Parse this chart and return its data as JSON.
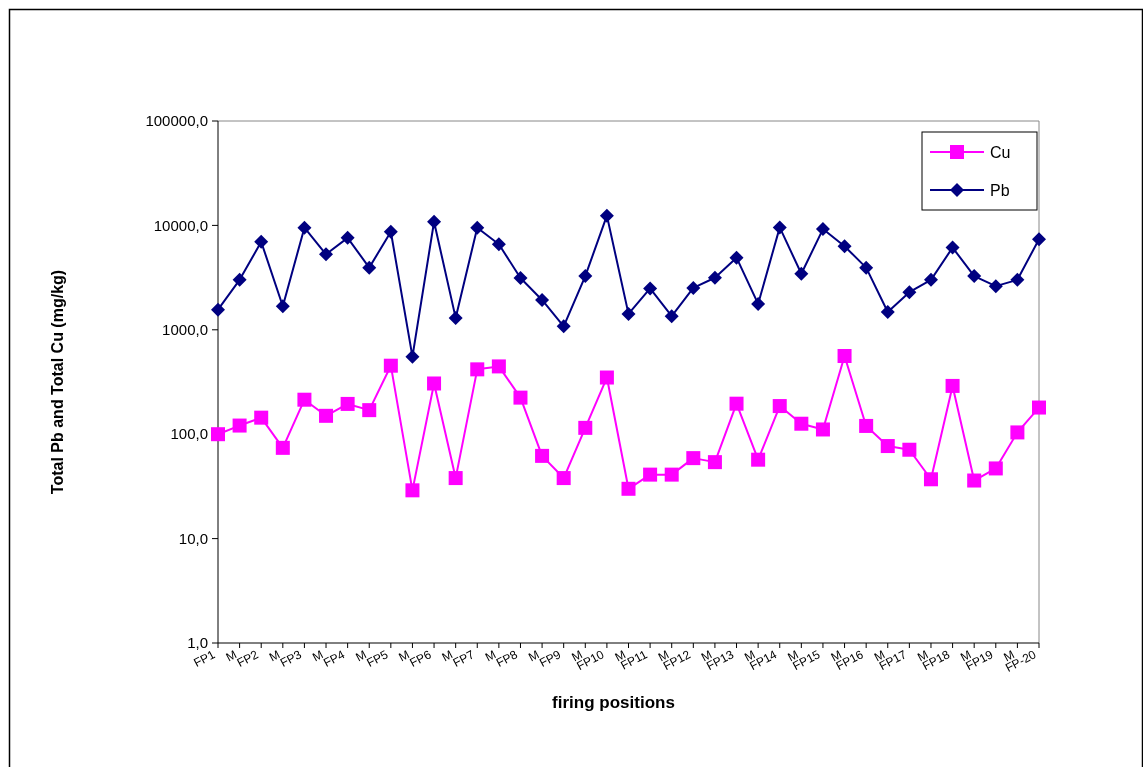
{
  "chart_data": {
    "type": "line",
    "xlabel": "firing positions",
    "ylabel": "Total Pb and Total Cu  (mg/kg)",
    "categories": [
      "FP1",
      "M",
      "FP2",
      "M",
      "FP3",
      "M",
      "FP4",
      "M",
      "FP5",
      "M",
      "FP6",
      "M",
      "FP7",
      "M",
      "FP8",
      "M",
      "FP9",
      "M",
      "FP10",
      "M",
      "FP11",
      "M",
      "FP12",
      "M",
      "FP13",
      "M",
      "FP14",
      "M",
      "FP15",
      "M",
      "FP16",
      "M",
      "FP17",
      "M",
      "FP18",
      "M",
      "FP19",
      "M",
      "FP-20"
    ],
    "series": [
      {
        "name": "Cu",
        "color": "#ff00ff",
        "marker": "square",
        "values": [
          100,
          121,
          144,
          74,
          214,
          150,
          195,
          170,
          453,
          29,
          306,
          38,
          418,
          446,
          224,
          62,
          38,
          115,
          349,
          30,
          41,
          41,
          59,
          54,
          196,
          57,
          186,
          126,
          111,
          561,
          120,
          77,
          71,
          37,
          290,
          36,
          47,
          104,
          180
        ]
      },
      {
        "name": "Pb",
        "color": "#000080",
        "marker": "diamond",
        "values": [
          1560,
          3010,
          6960,
          1680,
          9500,
          5290,
          7600,
          3940,
          8690,
          553,
          10840,
          1300,
          9500,
          6610,
          3130,
          1930,
          1080,
          3270,
          12400,
          1420,
          2490,
          1350,
          2520,
          3150,
          4910,
          1770,
          9570,
          3440,
          9220,
          6320,
          3940,
          1480,
          2290,
          3010,
          6130,
          3270,
          2620,
          3010,
          7380
        ]
      }
    ],
    "log": "y",
    "ylim": [
      1,
      100000
    ],
    "yticks": [
      {
        "value": 1,
        "label": "1,0"
      },
      {
        "value": 10,
        "label": "10,0"
      },
      {
        "value": 100,
        "label": "100,0"
      },
      {
        "value": 1000,
        "label": "1000,0"
      },
      {
        "value": 10000,
        "label": "10000,0"
      },
      {
        "value": 100000,
        "label": "100000,0"
      }
    ],
    "grid": false,
    "legend": "top right"
  }
}
